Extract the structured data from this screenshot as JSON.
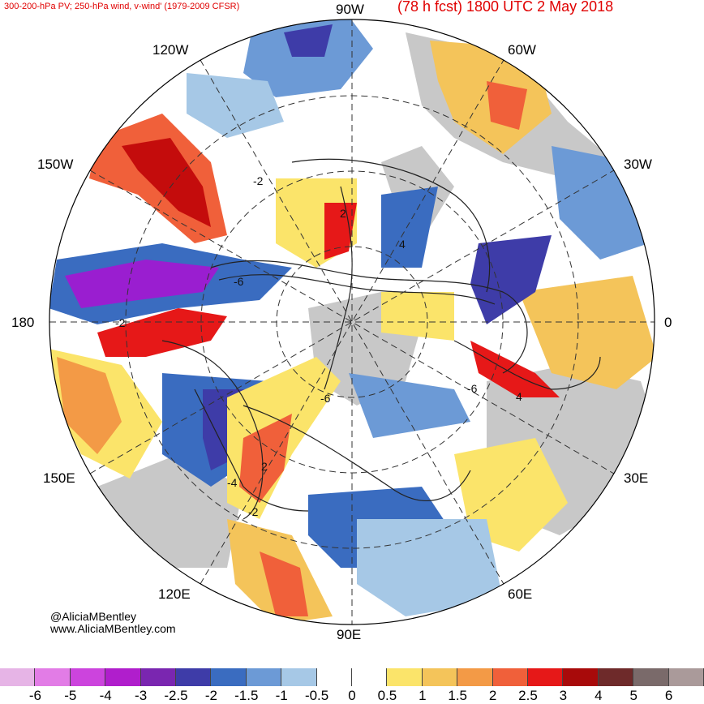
{
  "header": {
    "subtitle": "300-200-hPa PV; 250-hPa wind, v-wind' (1979-2009 CFSR)",
    "title": "(78 h fcst) 1800 UTC 2 May 2018"
  },
  "credits": {
    "handle": "@AliciaMBentley",
    "website": "www.AliciaMBentley.com"
  },
  "longitude_labels": {
    "lon_90w": "90W",
    "lon_60w": "60W",
    "lon_30w": "30W",
    "lon_0": "0",
    "lon_30e": "30E",
    "lon_60e": "60E",
    "lon_90e": "90E",
    "lon_120e": "120E",
    "lon_150e": "150E",
    "lon_180": "180",
    "lon_150w": "150W",
    "lon_120w": "120W"
  },
  "contour_labels": {
    "c1": "-2",
    "c2": "2",
    "c3": "-6",
    "c4": "4",
    "c5": "-2",
    "c6": "-6",
    "c7": "-6",
    "c8": "2",
    "c9": "-4",
    "c10": "-2",
    "c11": "4"
  },
  "colorbar": {
    "colors": [
      "#e6b4e6",
      "#e27ce6",
      "#cc44dd",
      "#b01ecc",
      "#7a26b0",
      "#3e3ca8",
      "#3a6cc0",
      "#6c9ad6",
      "#a6c8e6",
      "#ffffff",
      "#ffffff",
      "#fbe46a",
      "#f4c45a",
      "#f39a46",
      "#f0603a",
      "#e61818",
      "#a80a0a",
      "#6e2a2a",
      "#7a6a6a",
      "#aa9a9a"
    ],
    "labels": [
      "-6",
      "-5",
      "-4",
      "-3",
      "-2.5",
      "-2",
      "-1.5",
      "-1",
      "-0.5",
      "0",
      "0.5",
      "1",
      "1.5",
      "2",
      "2.5",
      "3",
      "4",
      "5",
      "6"
    ]
  },
  "map_colors": {
    "land": "#c8c8c8",
    "pv_negative_strong": "#9a1ed0",
    "pv_negative": "#3a6cc0",
    "pv_negative_weak": "#a6c8e6",
    "pv_positive_weak": "#fbe46a",
    "pv_positive": "#f39a46",
    "pv_positive_strong": "#e61818"
  }
}
